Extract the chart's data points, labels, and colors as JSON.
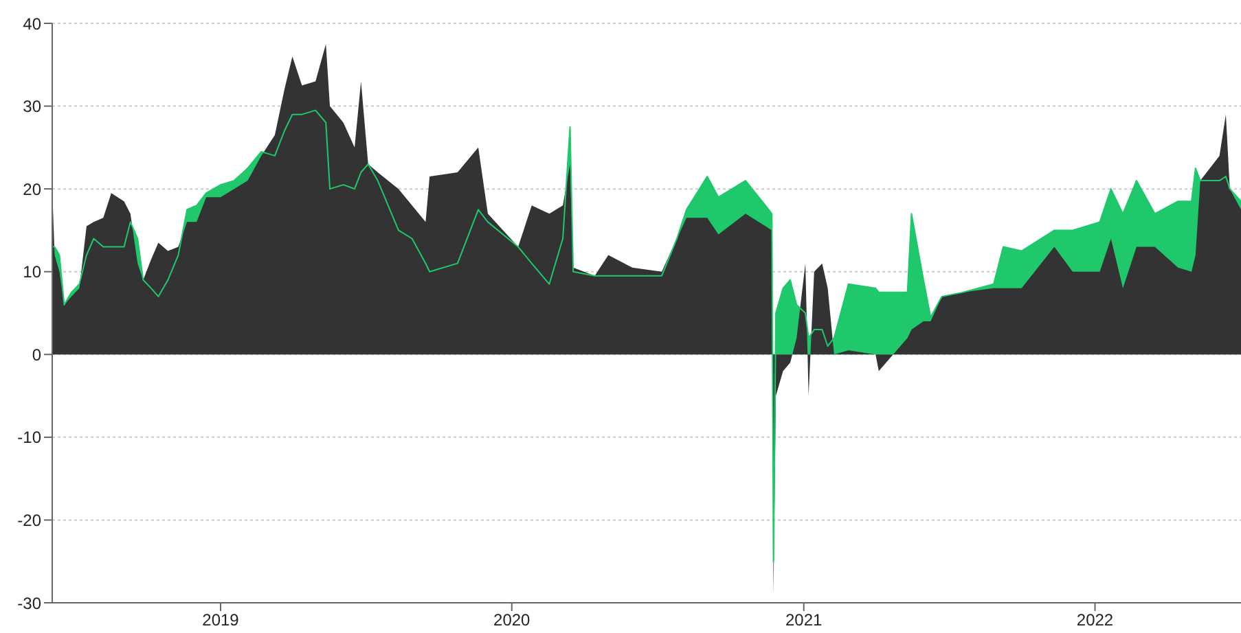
{
  "chart_data": {
    "type": "area",
    "x": [
      "2018-06-04",
      "2018-06-07",
      "2018-06-13",
      "2018-06-19",
      "2018-06-28",
      "2018-07-08",
      "2018-07-17",
      "2018-07-26",
      "2018-08-07",
      "2018-08-17",
      "2018-09-02",
      "2018-09-10",
      "2018-09-19",
      "2018-09-26",
      "2018-10-06",
      "2018-10-15",
      "2018-10-27",
      "2018-11-09",
      "2018-11-20",
      "2018-12-02",
      "2018-12-14",
      "2019-01-01",
      "2019-01-18",
      "2019-02-04",
      "2019-02-21",
      "2019-03-10",
      "2019-03-22",
      "2019-04-01",
      "2019-04-13",
      "2019-04-30",
      "2019-05-13",
      "2019-05-18",
      "2019-06-04",
      "2019-06-18",
      "2019-06-26",
      "2019-07-05",
      "2019-07-17",
      "2019-08-12",
      "2019-08-29",
      "2019-09-15",
      "2019-09-20",
      "2019-10-25",
      "2019-11-20",
      "2019-12-02",
      "2020-01-09",
      "2020-01-26",
      "2020-02-17",
      "2020-03-05",
      "2020-03-14",
      "2020-03-18",
      "2020-04-14",
      "2020-05-01",
      "2020-05-31",
      "2020-07-07",
      "2020-07-26",
      "2020-08-07",
      "2020-09-02",
      "2020-09-16",
      "2020-10-20",
      "2020-11-14",
      "2020-11-22",
      "2020-11-24",
      "2020-11-27",
      "2020-12-06",
      "2020-12-15",
      "2020-12-23",
      "2021-01-03",
      "2021-01-07",
      "2021-01-14",
      "2021-01-24",
      "2021-01-31",
      "2021-02-08",
      "2021-02-26",
      "2021-04-01",
      "2021-04-05",
      "2021-05-11",
      "2021-05-16",
      "2021-05-31",
      "2021-06-09",
      "2021-06-23",
      "2021-07-19",
      "2021-08-27",
      "2021-09-08",
      "2021-10-01",
      "2021-11-11",
      "2021-12-04",
      "2022-01-07",
      "2022-01-21",
      "2022-02-05",
      "2022-02-22",
      "2022-03-17",
      "2022-04-15",
      "2022-05-02",
      "2022-05-07",
      "2022-05-13",
      "2022-06-06",
      "2022-06-14",
      "2022-06-19",
      "2022-07-03"
    ],
    "series": [
      {
        "color": "#1ec86b",
        "values": [
          13,
          13,
          12,
          6,
          7.5,
          8.5,
          12,
          14,
          13,
          13,
          13,
          16,
          14,
          9,
          8,
          7,
          9,
          12,
          17.5,
          18,
          19.5,
          20.5,
          21,
          22.5,
          24.5,
          24,
          27,
          29,
          29,
          29.5,
          28,
          20,
          20.5,
          20,
          22,
          23,
          21,
          15,
          14,
          11,
          10,
          11,
          17.5,
          16,
          13,
          11,
          8.5,
          14,
          27.5,
          10,
          9.5,
          9.5,
          9.5,
          9.5,
          14,
          17.5,
          21.5,
          19,
          21,
          18,
          17,
          -25,
          5,
          8,
          9,
          6,
          5,
          2,
          3,
          3,
          1,
          2,
          8.5,
          8,
          7.5,
          7.5,
          17,
          9,
          4.5,
          7,
          7.5,
          8.5,
          13,
          12.5,
          15,
          15,
          16,
          20,
          17,
          21,
          17,
          18.5,
          18.5,
          22.5,
          21,
          21,
          21.5,
          20,
          18.5
        ]
      },
      {
        "color": "#333333",
        "values": [
          20,
          12,
          10,
          6,
          7,
          8,
          15.5,
          16,
          16.5,
          19.5,
          18.5,
          17,
          11,
          9,
          11.5,
          13.5,
          12.5,
          13,
          16,
          16,
          19,
          19,
          20,
          21,
          24,
          26.5,
          32,
          36,
          32.5,
          33,
          37.5,
          30,
          28,
          25,
          33,
          23,
          22,
          20,
          18,
          16,
          21.5,
          22,
          25,
          17,
          13,
          18,
          17,
          18,
          23,
          10.5,
          9.5,
          12,
          10.5,
          10,
          14,
          16.5,
          16.5,
          14.5,
          17,
          15.5,
          15,
          -29,
          -5,
          -2,
          -1,
          2,
          11,
          -5,
          10,
          11,
          8,
          0,
          0.5,
          0,
          -2,
          2,
          3,
          4,
          4,
          7,
          7.5,
          8,
          8,
          8,
          13,
          10,
          10,
          14,
          8,
          13,
          13,
          10.5,
          10,
          12,
          21,
          24,
          29,
          20,
          17.5
        ]
      }
    ],
    "xlim": [
      "2018-06-04",
      "2022-07-03"
    ],
    "xticks": [
      "2019",
      "2020",
      "2021",
      "2022"
    ],
    "ylim": [
      -30,
      40
    ],
    "yticks": [
      -30,
      -20,
      -10,
      0,
      10,
      20,
      30,
      40
    ],
    "grid": "y"
  }
}
